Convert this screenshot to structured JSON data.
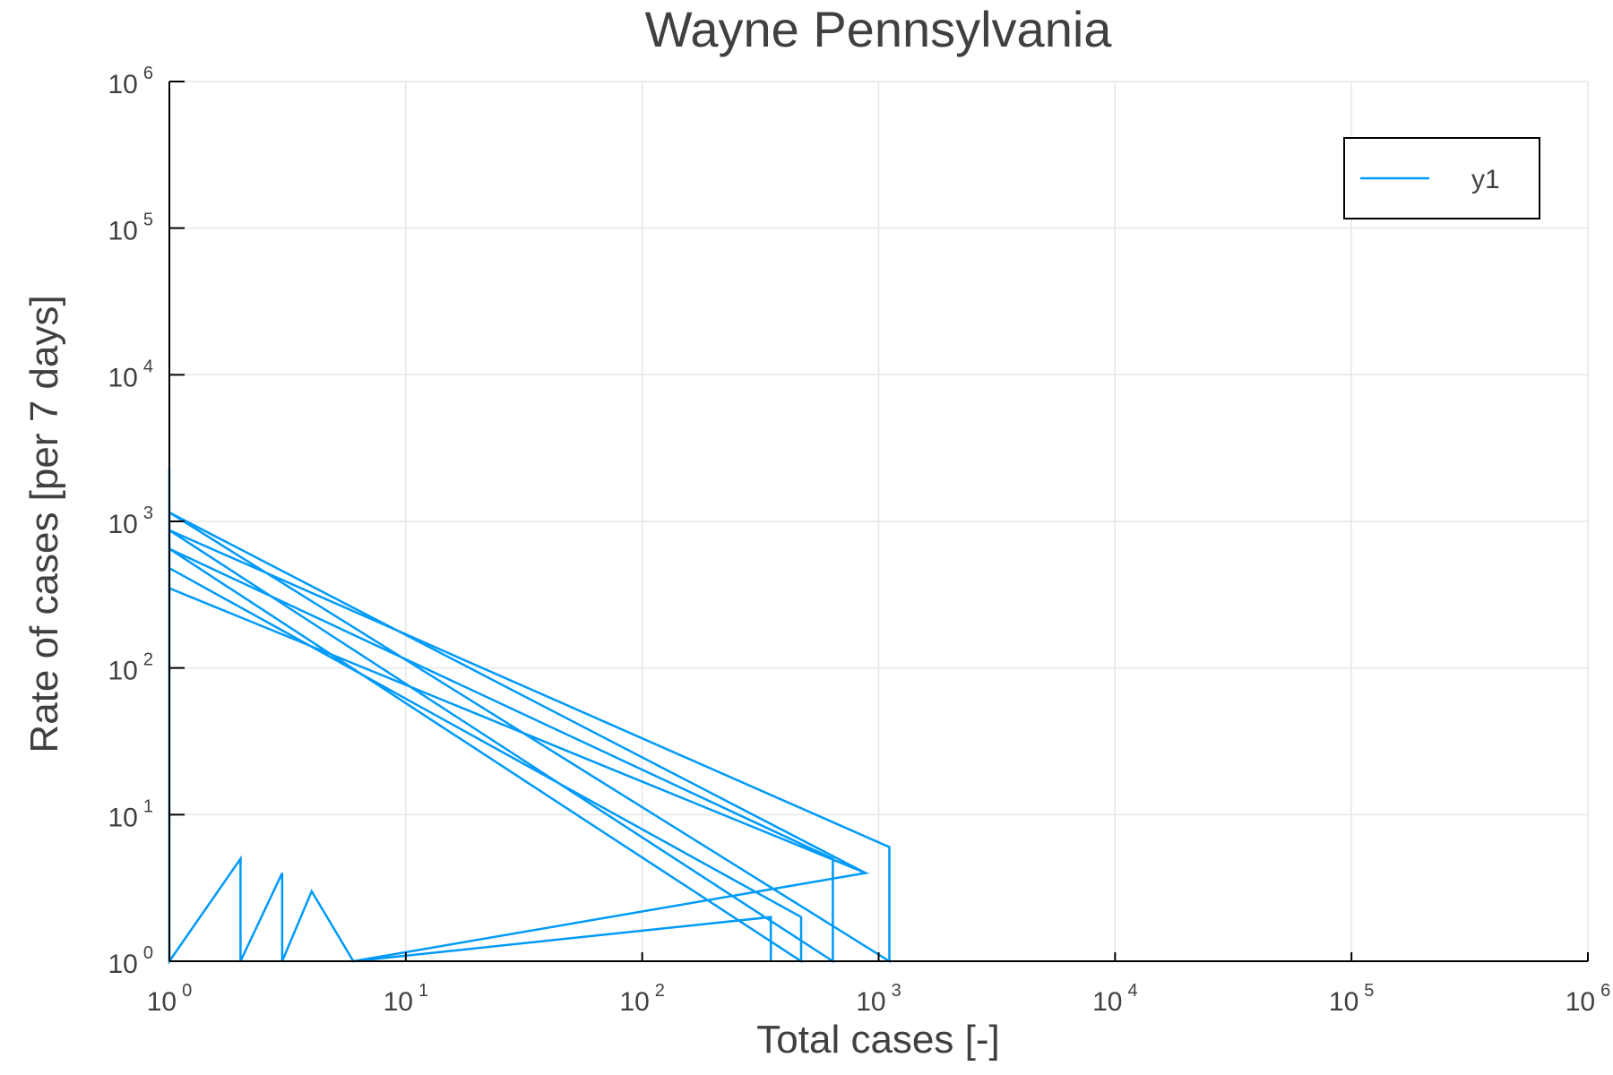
{
  "chart_data": {
    "type": "line",
    "title": "Wayne Pennsylvania",
    "xlabel": "Total cases [-]",
    "ylabel": "Rate of cases [per 7 days]",
    "xscale": "log",
    "yscale": "log",
    "xlim": [
      1,
      1000000
    ],
    "ylim": [
      1,
      1000000
    ],
    "x_ticks": [
      {
        "base": "10",
        "exp": "0",
        "value": 1
      },
      {
        "base": "10",
        "exp": "1",
        "value": 10
      },
      {
        "base": "10",
        "exp": "2",
        "value": 100
      },
      {
        "base": "10",
        "exp": "3",
        "value": 1000
      },
      {
        "base": "10",
        "exp": "4",
        "value": 10000
      },
      {
        "base": "10",
        "exp": "5",
        "value": 100000
      },
      {
        "base": "10",
        "exp": "6",
        "value": 1000000
      }
    ],
    "y_ticks": [
      {
        "base": "10",
        "exp": "0",
        "value": 1
      },
      {
        "base": "10",
        "exp": "1",
        "value": 10
      },
      {
        "base": "10",
        "exp": "2",
        "value": 100
      },
      {
        "base": "10",
        "exp": "3",
        "value": 1000
      },
      {
        "base": "10",
        "exp": "4",
        "value": 10000
      },
      {
        "base": "10",
        "exp": "5",
        "value": 100000
      },
      {
        "base": "10",
        "exp": "6",
        "value": 1000000
      }
    ],
    "grid": true,
    "legend_position": "top-right",
    "series": [
      {
        "name": "y1",
        "color": "#009af9",
        "points": [
          [
            1,
            2300
          ],
          [
            1,
            1
          ],
          [
            2,
            5
          ],
          [
            2,
            1
          ],
          [
            3,
            4
          ],
          [
            3,
            1
          ],
          [
            4,
            3
          ],
          [
            6,
            1
          ],
          [
            880,
            4
          ],
          [
            1,
            350
          ],
          [
            1,
            480
          ],
          [
            470,
            2
          ],
          [
            470,
            1
          ],
          [
            1,
            650
          ],
          [
            640,
            5
          ],
          [
            640,
            1
          ],
          [
            1,
            870
          ],
          [
            1110,
            6
          ],
          [
            1110,
            1
          ],
          [
            1,
            1150
          ],
          [
            880,
            4
          ],
          [
            6,
            1
          ],
          [
            350,
            2
          ],
          [
            350,
            1
          ]
        ]
      }
    ]
  }
}
